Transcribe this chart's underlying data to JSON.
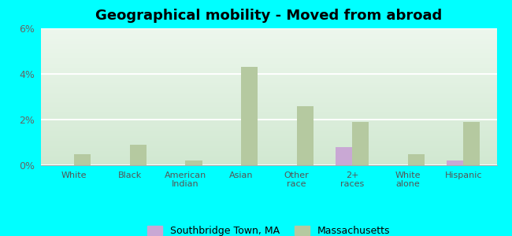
{
  "title": "Geographical mobility - Moved from abroad",
  "categories": [
    "White",
    "Black",
    "American\nIndian",
    "Asian",
    "Other\nrace",
    "2+\nraces",
    "White\nalone",
    "Hispanic"
  ],
  "southbridge_values": [
    0.0,
    0.0,
    0.0,
    0.0,
    0.0,
    0.8,
    0.0,
    0.2
  ],
  "massachusetts_values": [
    0.5,
    0.9,
    0.2,
    4.3,
    2.6,
    1.9,
    0.5,
    1.9
  ],
  "southbridge_color": "#c9a8d4",
  "massachusetts_color": "#b5c9a0",
  "background_color": "#00ffff",
  "ylim": [
    0,
    6
  ],
  "yticks": [
    0,
    2,
    4,
    6
  ],
  "ytick_labels": [
    "0%",
    "2%",
    "4%",
    "6%"
  ],
  "legend_labels": [
    "Southbridge Town, MA",
    "Massachusetts"
  ],
  "title_fontsize": 13,
  "bar_width": 0.3
}
